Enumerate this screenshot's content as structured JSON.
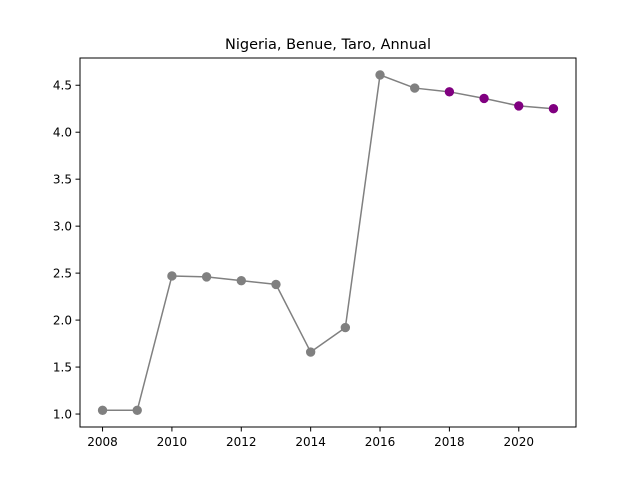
{
  "chart_data": {
    "type": "line",
    "title": "Nigeria, Benue, Taro, Annual",
    "xlabel": "",
    "ylabel": "",
    "x": [
      2008,
      2009,
      2010,
      2011,
      2012,
      2013,
      2014,
      2015,
      2016,
      2017,
      2018,
      2019,
      2020,
      2021
    ],
    "values": [
      1.04,
      1.04,
      2.47,
      2.46,
      2.42,
      2.38,
      1.66,
      1.92,
      4.61,
      4.47,
      4.43,
      4.36,
      4.28,
      4.25
    ],
    "point_colors": [
      "#808080",
      "#808080",
      "#808080",
      "#808080",
      "#808080",
      "#808080",
      "#808080",
      "#808080",
      "#808080",
      "#808080",
      "#800080",
      "#800080",
      "#800080",
      "#800080"
    ],
    "line_color": "#808080",
    "xlim": [
      2007.35,
      2021.65
    ],
    "ylim": [
      0.862,
      4.79
    ],
    "xticks": [
      2008,
      2010,
      2012,
      2014,
      2016,
      2018,
      2020
    ],
    "xtick_labels": [
      "2008",
      "2010",
      "2012",
      "2014",
      "2016",
      "2018",
      "2020"
    ],
    "yticks": [
      1.0,
      1.5,
      2.0,
      2.5,
      3.0,
      3.5,
      4.0,
      4.5
    ],
    "ytick_labels": [
      "1.0",
      "1.5",
      "2.0",
      "2.5",
      "3.0",
      "3.5",
      "4.0",
      "4.5"
    ],
    "grid": false,
    "legend": "none"
  }
}
